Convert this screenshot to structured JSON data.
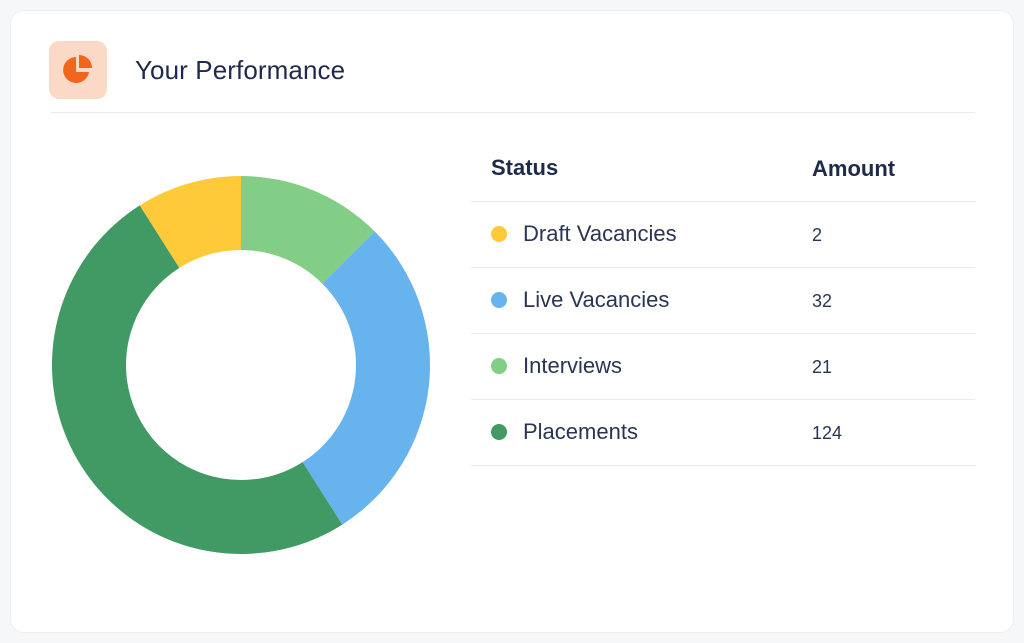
{
  "header": {
    "title": "Your Performance",
    "icon": "pie-chart-icon",
    "icon_color": "#f2661c",
    "icon_bg": "#fbd9c6"
  },
  "table": {
    "col_status": "Status",
    "col_amount": "Amount",
    "rows": [
      {
        "label": "Draft Vacancies",
        "value": "2",
        "color": "#ffca3a"
      },
      {
        "label": "Live Vacancies",
        "value": "32",
        "color": "#67b3ee"
      },
      {
        "label": "Interviews",
        "value": "21",
        "color": "#82ce86"
      },
      {
        "label": "Placements",
        "value": "124",
        "color": "#419963"
      }
    ]
  },
  "chart_data": {
    "type": "pie",
    "variant": "donut",
    "segments": [
      {
        "label": "Interviews",
        "value": 12.5,
        "color": "#82ce86"
      },
      {
        "label": "Live Vacancies",
        "value": 28.5,
        "color": "#67b3ee"
      },
      {
        "label": "Placements",
        "value": 9.0,
        "color": "#419963"
      },
      {
        "label": "Placements",
        "value": 41.0,
        "color": "#419963"
      },
      {
        "label": "Draft Vacancies",
        "value": 9.0,
        "color": "#ffca3a"
      }
    ]
  }
}
